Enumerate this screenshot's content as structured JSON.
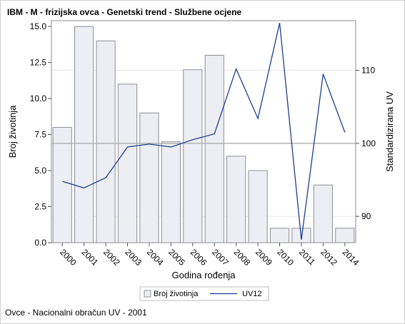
{
  "title": "IBM - M - frizijska ovca - Genetski trend - Službene ocjene",
  "footnote": "Ovce - Nacionalni obračun UV - 2001",
  "colors": {
    "bar_fill": "#eceef3",
    "bar_stroke": "#8e8f95",
    "line": "#1b3f91",
    "ref_line": "#a8a8a8",
    "grid": "#e6e6e6"
  },
  "chart_data": {
    "type": "bar",
    "categories": [
      "2000",
      "2001",
      "2002",
      "2003",
      "2004",
      "2005",
      "2006",
      "2007",
      "2008",
      "2009",
      "2010",
      "2011",
      "2012",
      "2014"
    ],
    "xlabel": "Godina rođenja",
    "ylabel": "Broj životinja",
    "y2label": "Standardizirana UV",
    "ylim": [
      0,
      15.4
    ],
    "y2lim": [
      86.4,
      116.8
    ],
    "yticks": [
      "0.0",
      "2.5",
      "5.0",
      "7.5",
      "10.0",
      "12.5",
      "15.0"
    ],
    "y2ticks": [
      "90",
      "100",
      "110"
    ],
    "reference_line_y2": 100,
    "grid": "horizontal, right axis",
    "series": [
      {
        "name": "Broj životinja",
        "type": "bar",
        "values": [
          8,
          15,
          14,
          11,
          9,
          7,
          12,
          13,
          6,
          5,
          1,
          1,
          4,
          1
        ]
      },
      {
        "name": "UV12",
        "type": "line",
        "axis": "y2",
        "values": [
          94.8,
          93.9,
          95.3,
          99.5,
          99.9,
          99.5,
          100.5,
          101.3,
          110.2,
          103.4,
          116.5,
          86.8,
          109.5,
          101.5
        ]
      }
    ],
    "legend": {
      "position": "bottom",
      "entries": [
        "Broj životinja",
        "UV12"
      ]
    }
  }
}
